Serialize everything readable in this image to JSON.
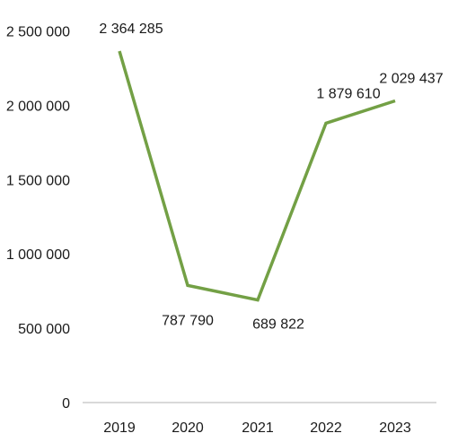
{
  "chart_data": {
    "type": "line",
    "categories": [
      "2019",
      "2020",
      "2021",
      "2022",
      "2023"
    ],
    "series": [
      {
        "values": [
          2364285,
          787790,
          689822,
          1879610,
          2029437
        ],
        "labels": [
          "2 364 285",
          "787 790",
          "689 822",
          "1 879 610",
          "2 029 437"
        ],
        "color": "#73a045"
      }
    ],
    "y_ticks": [
      0,
      500000,
      1000000,
      1500000,
      2000000,
      2500000
    ],
    "y_tick_labels": [
      "0",
      "500 000",
      "1 000 000",
      "1 500 000",
      "2 000 000",
      "2 500 000"
    ],
    "ylim": [
      0,
      2500000
    ],
    "title": "",
    "xlabel": "",
    "ylabel": "",
    "grid": false,
    "legend": "none",
    "axis_color": "#b3b3b3"
  }
}
